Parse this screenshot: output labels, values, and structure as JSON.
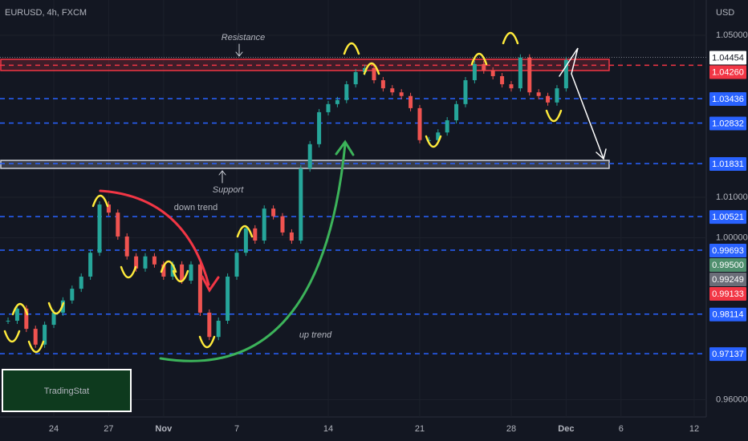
{
  "chart_data": {
    "type": "candlestick",
    "title": "EURUSD, 4h, FXCM",
    "y_axis_label": "USD",
    "up_color": "#26a69a",
    "down_color": "#ef5350",
    "grid": true,
    "xlim": [
      -2.94,
      35.66
    ],
    "ylim": [
      0.95574,
      1.05871
    ],
    "xticks": [
      {
        "value": 0,
        "label": "24"
      },
      {
        "value": 3,
        "label": "27"
      },
      {
        "value": 6,
        "label": "Nov"
      },
      {
        "value": 10,
        "label": "7"
      },
      {
        "value": 15,
        "label": "14"
      },
      {
        "value": 20,
        "label": "21"
      },
      {
        "value": 25,
        "label": "28"
      },
      {
        "value": 28,
        "label": "Dec"
      },
      {
        "value": 31,
        "label": "6"
      },
      {
        "value": 35,
        "label": "12"
      }
    ],
    "yticks": [
      {
        "value": 1.05,
        "label": "1.05000"
      },
      {
        "value": 1.01,
        "label": "1.01000"
      },
      {
        "value": 1.0,
        "label": "1.00000"
      },
      {
        "value": 0.96,
        "label": "0.96000"
      }
    ],
    "x": [
      -2.5,
      -2,
      -1.5,
      -1,
      -0.5,
      0,
      0.5,
      1,
      1.5,
      2,
      2.5,
      3,
      3.5,
      4,
      4.5,
      5,
      5.5,
      6,
      6.5,
      7,
      7.5,
      8,
      8.5,
      9,
      9.5,
      10,
      10.5,
      11,
      11.5,
      12,
      12.5,
      13,
      13.5,
      14,
      14.5,
      15,
      15.5,
      16,
      16.5,
      17,
      17.5,
      18,
      18.5,
      19,
      19.5,
      20,
      20.5,
      21,
      21.5,
      22,
      22.5,
      23,
      23.5,
      24,
      24.5,
      25,
      25.5,
      26,
      26.5,
      27,
      27.5,
      28
    ],
    "values": [
      0.9795,
      0.9825,
      0.9775,
      0.9736,
      0.9785,
      0.9815,
      0.9845,
      0.9874,
      0.9904,
      0.9963,
      1.0082,
      1.0062,
      1.0003,
      0.9954,
      0.9924,
      0.9954,
      0.9934,
      0.9904,
      0.9934,
      0.9894,
      0.9934,
      0.9815,
      0.9755,
      0.9795,
      0.9904,
      0.9963,
      1.0023,
      0.9993,
      1.0072,
      1.0053,
      1.0013,
      0.9993,
      1.0171,
      1.0231,
      1.031,
      1.033,
      1.034,
      1.0379,
      1.0409,
      1.0419,
      1.0389,
      1.0369,
      1.0359,
      1.035,
      1.032,
      1.0241,
      1.0241,
      1.026,
      1.029,
      1.033,
      1.0389,
      1.0429,
      1.0413,
      1.0399,
      1.0379,
      1.0369,
      1.0445,
      1.0359,
      1.035,
      1.0334,
      1.0369,
      1.0439
    ],
    "levels": [
      {
        "value": 1.04454,
        "label": "1.04454",
        "color": "#ffffff",
        "line": "dotted"
      },
      {
        "value": 1.0426,
        "label": "1.04260",
        "color": "#f23645",
        "line": "dashed"
      },
      {
        "value": 1.03436,
        "label": "1.03436",
        "color": "#2962ff",
        "line": "dashed"
      },
      {
        "value": 1.02832,
        "label": "1.02832",
        "color": "#2962ff",
        "line": "dashed"
      },
      {
        "value": 1.01831,
        "label": "1.01831",
        "color": "#2962ff",
        "line": "dashed"
      },
      {
        "value": 1.00521,
        "label": "1.00521",
        "color": "#2962ff",
        "line": "dashed"
      },
      {
        "value": 0.99693,
        "label": "0.99693",
        "color": "#2962ff",
        "line": "dashed"
      },
      {
        "value": 0.995,
        "label": "0.99500",
        "color": "#4f8f6e",
        "line": "none"
      },
      {
        "value": 0.99249,
        "label": "0.99249",
        "color": "#6a6d78",
        "line": "none"
      },
      {
        "value": 0.99133,
        "label": "0.99133",
        "color": "#f23645",
        "line": "none"
      },
      {
        "value": 0.98114,
        "label": "0.98114",
        "color": "#2962ff",
        "line": "dashed"
      },
      {
        "value": 0.97137,
        "label": "0.97137",
        "color": "#2962ff",
        "line": "dashed"
      }
    ],
    "zones": [
      {
        "label": "Resistance",
        "ylim": [
          1.04129,
          1.04406
        ],
        "color": "#f23645"
      },
      {
        "label": "Support",
        "ylim": [
          1.01713,
          1.0191
        ],
        "color": "#d1d4dc"
      }
    ],
    "annotations": [
      "down trend",
      "up trend"
    ],
    "brand": "TradingStat"
  }
}
